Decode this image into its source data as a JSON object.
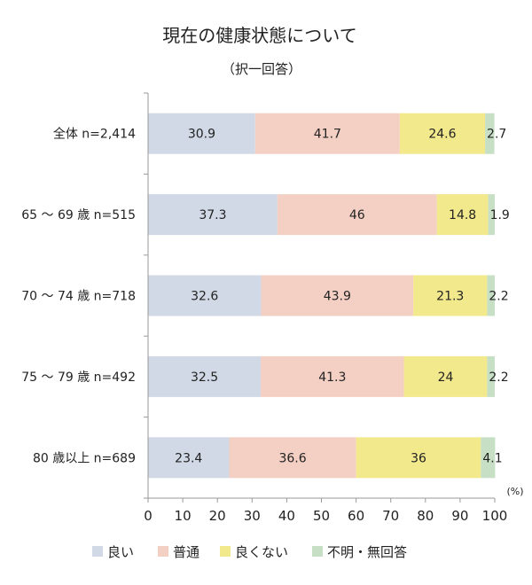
{
  "chart_data": {
    "type": "bar",
    "orientation": "horizontal",
    "stacked": true,
    "title": "現在の健康状態について",
    "subtitle": "（択一回答）",
    "unit_label": "(%)",
    "categories": [
      "全体 n=2,414",
      "65 〜 69 歳 n=515",
      "70 〜 74 歳 n=718",
      "75 〜 79 歳 n=492",
      "80 歳以上 n=689"
    ],
    "series": [
      {
        "name": "良い",
        "color": "#d0d9e5",
        "values": [
          30.9,
          37.3,
          32.6,
          32.5,
          23.4
        ],
        "labels": [
          "30.9",
          "37.3",
          "32.6",
          "32.5",
          "23.4"
        ]
      },
      {
        "name": "普通",
        "color": "#f4cfc4",
        "values": [
          41.7,
          46,
          43.9,
          41.3,
          36.6
        ],
        "labels": [
          "41.7",
          "46",
          "43.9",
          "41.3",
          "36.6"
        ]
      },
      {
        "name": "良くない",
        "color": "#f2e88c",
        "values": [
          24.6,
          14.8,
          21.3,
          24,
          36
        ],
        "labels": [
          "24.6",
          "14.8",
          "21.3",
          "24",
          "36"
        ]
      },
      {
        "name": "不明・無回答",
        "color": "#c7e0c5",
        "values": [
          2.7,
          1.9,
          2.2,
          2.2,
          4.1
        ],
        "labels": [
          "2.7",
          "1.9",
          "2.2",
          "2.2",
          "4.1"
        ]
      }
    ],
    "xlim": [
      0,
      100
    ],
    "xticks": [
      "0",
      "10",
      "20",
      "30",
      "40",
      "50",
      "60",
      "70",
      "80",
      "90",
      "100"
    ],
    "grid": false,
    "legend_position": "bottom"
  }
}
